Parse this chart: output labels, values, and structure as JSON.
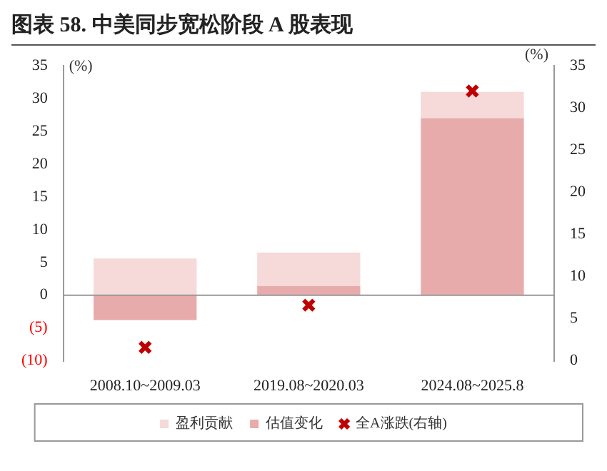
{
  "chart_data": {
    "type": "bar",
    "title": "图表 58. 中美同步宽松阶段 A 股表现",
    "ylabel": "(%)",
    "y2label": "(%)",
    "categories": [
      "2008.10~2009.03",
      "2019.08~2020.03",
      "2024.08~2025.8"
    ],
    "stacked": true,
    "series": [
      {
        "name": "估值变化",
        "color": "#e8abab",
        "values": [
          -3.8,
          1.4,
          27
        ]
      },
      {
        "name": "盈利贡献",
        "color": "#f6d9d9",
        "values": [
          5.6,
          5.1,
          4
        ]
      },
      {
        "name": "全A涨跌(右轴)",
        "type": "scatter",
        "axis": "y2",
        "marker": "cross",
        "color": "#c00000",
        "values": [
          1.6,
          6.6,
          32
        ]
      }
    ],
    "ylim": [
      -10,
      35
    ],
    "yticks": [
      {
        "value": -10,
        "label": "(10)"
      },
      {
        "value": -5,
        "label": "(5)"
      },
      0,
      5,
      10,
      15,
      20,
      25,
      30,
      35
    ],
    "y2lim": [
      0,
      35
    ],
    "y2ticks": [
      0,
      5,
      10,
      15,
      20,
      25,
      30,
      35
    ],
    "ref_lines": [
      {
        "axis": "y",
        "value": 0,
        "color": "#999999"
      }
    ],
    "grid": false,
    "legend": "bottom"
  }
}
